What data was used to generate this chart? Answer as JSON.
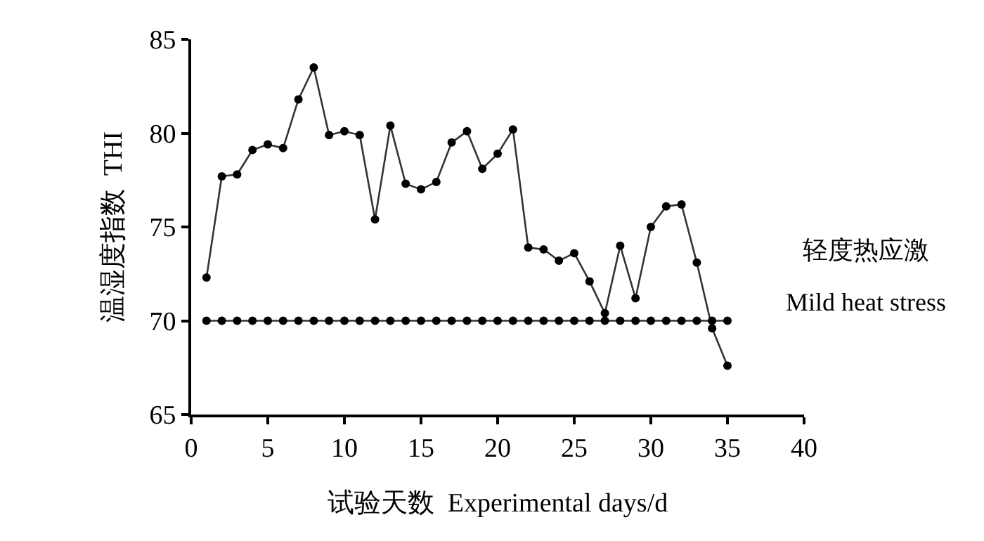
{
  "chart_data": {
    "type": "line",
    "xlabel": "试验天数  Experimental days/d",
    "ylabel": "温湿度指数  THI",
    "x": [
      1,
      2,
      3,
      4,
      5,
      6,
      7,
      8,
      9,
      10,
      11,
      12,
      13,
      14,
      15,
      16,
      17,
      18,
      19,
      20,
      21,
      22,
      23,
      24,
      25,
      26,
      27,
      28,
      29,
      30,
      31,
      32,
      33,
      34,
      35
    ],
    "series": [
      {
        "color": "#333333",
        "values": [
          72.3,
          77.7,
          77.8,
          79.1,
          79.4,
          79.2,
          81.8,
          83.5,
          79.9,
          80.1,
          79.9,
          75.4,
          80.4,
          77.3,
          77.0,
          77.4,
          79.5,
          80.1,
          78.1,
          78.9,
          80.2,
          73.9,
          73.8,
          73.2,
          73.6,
          72.1,
          70.4,
          74.0,
          71.2,
          75.0,
          76.1,
          76.2,
          73.1,
          69.6,
          67.6
        ]
      },
      {
        "color": "#333333",
        "values": [
          70,
          70,
          70,
          70,
          70,
          70,
          70,
          70,
          70,
          70,
          70,
          70,
          70,
          70,
          70,
          70,
          70,
          70,
          70,
          70,
          70,
          70,
          70,
          70,
          70,
          70,
          70,
          70,
          70,
          70,
          70,
          70,
          70,
          70,
          70
        ]
      }
    ],
    "annotations": [
      "轻度热应激",
      "Mild heat stress"
    ],
    "xlim": [
      0,
      40
    ],
    "xticks": [
      0,
      5,
      10,
      15,
      20,
      25,
      30,
      35,
      40
    ],
    "ylim": [
      65,
      85
    ],
    "yticks": [
      65,
      70,
      75,
      80,
      85
    ],
    "marker": "circle",
    "line_style": "solid"
  }
}
